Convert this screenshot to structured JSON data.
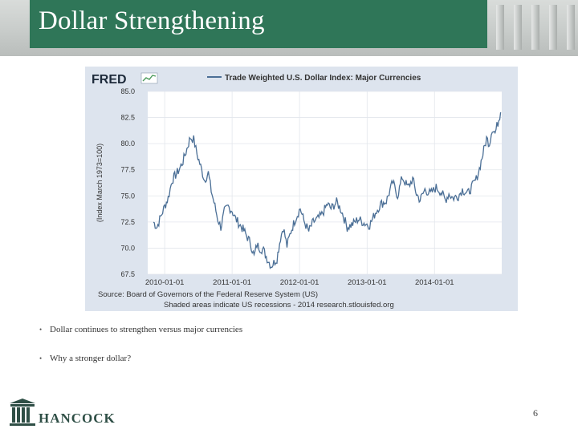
{
  "slide": {
    "title": "Dollar Strengthening",
    "bullets": [
      "Dollar continues to strengthen versus major currencies",
      "Why a stronger dollar?"
    ],
    "page_number": "6",
    "logo_text": "HANCOCK"
  },
  "colors": {
    "title_bar": "#2f7658",
    "series_line": "#4b6f96",
    "chart_frame": "#dde4ee"
  },
  "chart_data": {
    "type": "line",
    "brand": "FRED",
    "title": "Trade Weighted U.S. Dollar Index: Major Currencies",
    "ylabel": "(Index March 1973=100)",
    "xlabel": "",
    "x_range": [
      "2009-10-01",
      "2014-12-31"
    ],
    "ylim": [
      67.5,
      85.0
    ],
    "y_ticks": [
      "85.0",
      "82.5",
      "80.0",
      "77.5",
      "75.0",
      "72.5",
      "70.0",
      "67.5"
    ],
    "x_ticks": [
      {
        "date": "2010-01-01",
        "label": "2010-01-01"
      },
      {
        "date": "2011-01-01",
        "label": "2011-01-01"
      },
      {
        "date": "2012-01-01",
        "label": "2012-01-01"
      },
      {
        "date": "2013-01-01",
        "label": "2013-01-01"
      },
      {
        "date": "2014-01-01",
        "label": "2014-01-01"
      }
    ],
    "grid": true,
    "legend": "top",
    "source": "Source: Board of Governors of the Federal Reserve System (US)",
    "note": "Shaded areas indicate US recessions - 2014 research.stlouisfed.org",
    "series": [
      {
        "name": "Trade Weighted U.S. Dollar Index: Major Currencies",
        "points": [
          [
            "2009-11-01",
            72.5
          ],
          [
            "2009-11-20",
            72.0
          ],
          [
            "2009-12-10",
            73.0
          ],
          [
            "2010-01-01",
            74.0
          ],
          [
            "2010-01-20",
            74.8
          ],
          [
            "2010-02-10",
            76.5
          ],
          [
            "2010-03-01",
            77.0
          ],
          [
            "2010-03-20",
            77.5
          ],
          [
            "2010-04-10",
            78.3
          ],
          [
            "2010-05-01",
            79.5
          ],
          [
            "2010-05-20",
            80.6
          ],
          [
            "2010-06-07",
            80.4
          ],
          [
            "2010-06-25",
            79.0
          ],
          [
            "2010-07-15",
            77.8
          ],
          [
            "2010-08-05",
            76.5
          ],
          [
            "2010-08-25",
            77.2
          ],
          [
            "2010-09-10",
            75.5
          ],
          [
            "2010-09-30",
            74.0
          ],
          [
            "2010-10-15",
            72.8
          ],
          [
            "2010-11-01",
            72.0
          ],
          [
            "2010-11-20",
            73.5
          ],
          [
            "2010-12-10",
            74.0
          ],
          [
            "2011-01-01",
            73.6
          ],
          [
            "2011-01-20",
            72.8
          ],
          [
            "2011-02-10",
            72.3
          ],
          [
            "2011-03-01",
            71.8
          ],
          [
            "2011-03-20",
            71.2
          ],
          [
            "2011-04-10",
            70.5
          ],
          [
            "2011-04-30",
            69.2
          ],
          [
            "2011-05-15",
            70.3
          ],
          [
            "2011-06-01",
            70.0
          ],
          [
            "2011-06-20",
            69.8
          ],
          [
            "2011-07-10",
            69.0
          ],
          [
            "2011-07-31",
            68.3
          ],
          [
            "2011-08-15",
            68.6
          ],
          [
            "2011-09-01",
            69.0
          ],
          [
            "2011-09-20",
            71.0
          ],
          [
            "2011-10-05",
            72.0
          ],
          [
            "2011-10-25",
            70.2
          ],
          [
            "2011-11-15",
            71.6
          ],
          [
            "2011-12-10",
            72.8
          ],
          [
            "2012-01-05",
            73.8
          ],
          [
            "2012-01-25",
            72.6
          ],
          [
            "2012-02-20",
            71.6
          ],
          [
            "2012-03-15",
            72.5
          ],
          [
            "2012-04-10",
            72.8
          ],
          [
            "2012-05-01",
            73.2
          ],
          [
            "2012-05-31",
            74.2
          ],
          [
            "2012-06-20",
            73.8
          ],
          [
            "2012-07-20",
            74.4
          ],
          [
            "2012-08-15",
            73.6
          ],
          [
            "2012-09-15",
            72.0
          ],
          [
            "2012-10-15",
            72.3
          ],
          [
            "2012-11-15",
            72.8
          ],
          [
            "2012-12-15",
            72.4
          ],
          [
            "2013-01-15",
            72.2
          ],
          [
            "2013-02-15",
            73.4
          ],
          [
            "2013-03-15",
            74.2
          ],
          [
            "2013-04-15",
            74.5
          ],
          [
            "2013-05-20",
            76.3
          ],
          [
            "2013-06-15",
            75.0
          ],
          [
            "2013-07-10",
            76.8
          ],
          [
            "2013-08-10",
            75.8
          ],
          [
            "2013-09-05",
            76.6
          ],
          [
            "2013-09-25",
            75.2
          ],
          [
            "2013-10-15",
            74.6
          ],
          [
            "2013-11-10",
            75.6
          ],
          [
            "2013-12-10",
            75.2
          ],
          [
            "2014-01-10",
            75.8
          ],
          [
            "2014-02-05",
            75.4
          ],
          [
            "2014-03-01",
            74.6
          ],
          [
            "2014-03-20",
            75.2
          ],
          [
            "2014-04-10",
            74.8
          ],
          [
            "2014-05-10",
            75.0
          ],
          [
            "2014-06-01",
            75.6
          ],
          [
            "2014-06-30",
            75.2
          ],
          [
            "2014-07-20",
            75.8
          ],
          [
            "2014-08-15",
            76.6
          ],
          [
            "2014-09-01",
            77.6
          ],
          [
            "2014-09-20",
            79.0
          ],
          [
            "2014-10-10",
            80.5
          ],
          [
            "2014-10-25",
            80.0
          ],
          [
            "2014-11-10",
            81.5
          ],
          [
            "2014-11-25",
            81.0
          ],
          [
            "2014-12-10",
            82.0
          ],
          [
            "2014-12-25",
            83.0
          ]
        ]
      }
    ]
  }
}
